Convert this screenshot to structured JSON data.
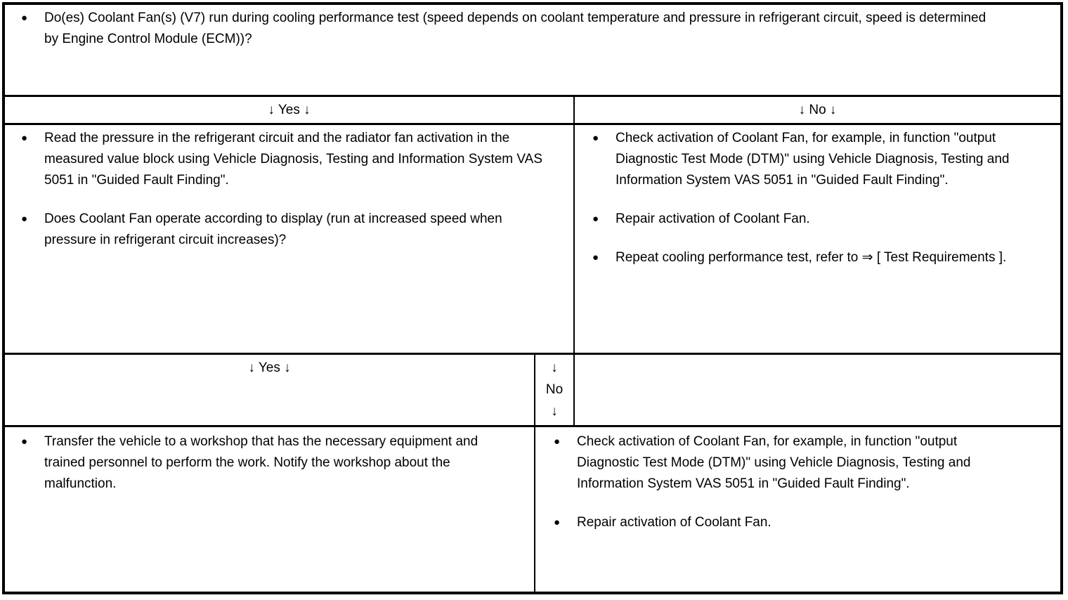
{
  "glyphs": {
    "bullet": "●"
  },
  "table": {
    "question": "Do(es) Coolant Fan(s) (V7) run during cooling performance test (speed depends on coolant temperature and pressure in refrigerant circuit, speed is determined by Engine Control Module (ECM))?",
    "branch1": {
      "yes_label": "↓ Yes ↓",
      "no_label": "↓ No ↓",
      "yes_items": [
        "Read the pressure in the refrigerant circuit and the radiator fan activation in the measured value block using Vehicle Diagnosis, Testing and Information System VAS 5051 in \"Guided Fault Finding\".",
        "Does Coolant Fan operate according to display (run at increased speed when pressure in refrigerant circuit increases)?"
      ],
      "no_items": [
        "Check activation of Coolant Fan, for example, in function \"output Diagnostic Test Mode (DTM)\" using Vehicle Diagnosis, Testing and Information System VAS 5051 in \"Guided Fault Finding\".",
        "Repair activation of Coolant Fan."
      ],
      "no_item3": {
        "prefix": "Repeat cooling performance test, refer to ",
        "link": "⇒ [ Test Requirements ]",
        "suffix": "."
      }
    },
    "branch2": {
      "yes_label": "↓ Yes ↓",
      "no_label_lines": [
        "↓",
        "No",
        "↓"
      ],
      "yes_items": [
        "Transfer the vehicle to a workshop that has the necessary equipment and trained personnel to perform the work. Notify the workshop about the malfunction."
      ],
      "no_items": [
        "Check activation of Coolant Fan, for example, in function \"output Diagnostic Test Mode (DTM)\" using Vehicle Diagnosis, Testing and Information System VAS 5051 in \"Guided Fault Finding\".",
        "Repair activation of Coolant Fan."
      ]
    }
  }
}
